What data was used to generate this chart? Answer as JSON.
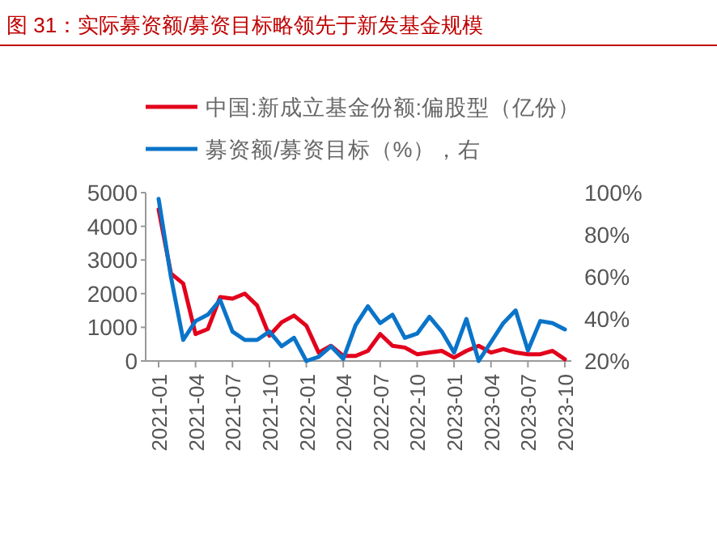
{
  "chart_data": {
    "type": "line",
    "title": "图 31：实际募资额/募资目标略领先于新发基金规模",
    "categories": [
      "2021-01",
      null,
      null,
      "2021-04",
      null,
      null,
      "2021-07",
      null,
      null,
      "2021-10",
      null,
      null,
      "2022-01",
      null,
      null,
      "2022-04",
      null,
      null,
      "2022-07",
      null,
      null,
      "2022-10",
      null,
      null,
      "2023-01",
      null,
      null,
      "2023-04",
      null,
      null,
      "2023-07",
      null,
      null,
      "2023-10"
    ],
    "series": [
      {
        "name": "中国:新成立基金份额:偏股型（亿份）",
        "color": "#e3001b",
        "values": [
          4500,
          2600,
          2300,
          800,
          950,
          1900,
          1850,
          2000,
          1650,
          750,
          1150,
          1350,
          1050,
          250,
          450,
          150,
          150,
          300,
          800,
          450,
          400,
          200,
          250,
          300,
          100,
          300,
          450,
          250,
          350,
          250,
          200,
          200,
          300,
          50
        ]
      },
      {
        "name": "募资额/募资目标（%），右",
        "color": "#0a74c9",
        "axis": "y2",
        "values": [
          97,
          60,
          30,
          39,
          42,
          49,
          34,
          30,
          30,
          34,
          27,
          31,
          20,
          22,
          27,
          21,
          37,
          46,
          38,
          42,
          31,
          33,
          41,
          34,
          24,
          40,
          20,
          29,
          38,
          44,
          25,
          39,
          38,
          35
        ]
      }
    ],
    "ylim": [
      0,
      5000
    ],
    "yticks": [
      0,
      1000,
      2000,
      3000,
      4000,
      5000
    ],
    "y2lim": [
      20,
      100
    ],
    "y2ticks": [
      {
        "value": 20,
        "label": "20%"
      },
      {
        "value": 40,
        "label": "40%"
      },
      {
        "value": 60,
        "label": "60%"
      },
      {
        "value": 80,
        "label": "80%"
      },
      {
        "value": 100,
        "label": "100%"
      }
    ],
    "legend": "top",
    "grid": false,
    "marker": "none",
    "line_style": "solid"
  }
}
